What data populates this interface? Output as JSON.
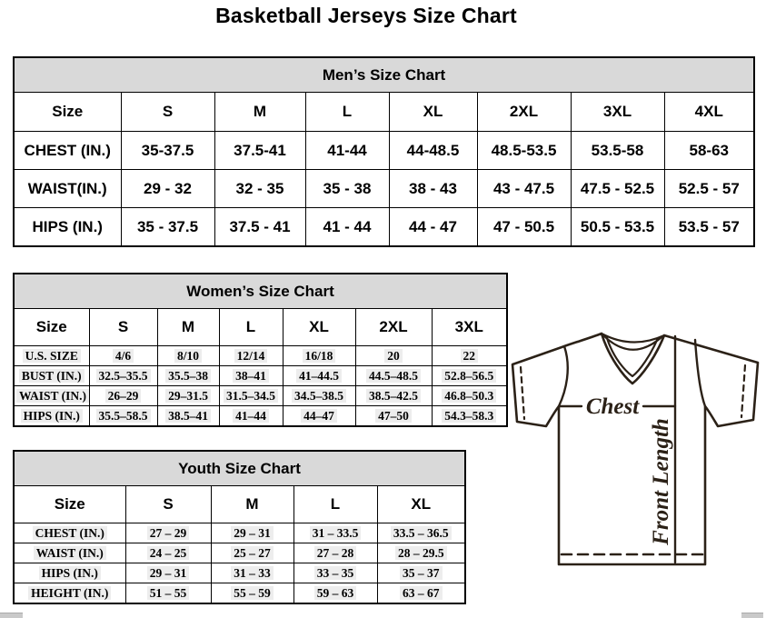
{
  "page_title": "Basketball Jerseys Size Chart",
  "tables": {
    "mens": {
      "title": "Men’s Size Chart",
      "header": [
        "Size",
        "S",
        "M",
        "L",
        "XL",
        "2XL",
        "3XL",
        "4XL"
      ],
      "rows": [
        {
          "label": "CHEST (IN.)",
          "values": [
            "35-37.5",
            "37.5-41",
            "41-44",
            "44-48.5",
            "48.5-53.5",
            "53.5-58",
            "58-63"
          ]
        },
        {
          "label": "WAIST(IN.)",
          "values": [
            "29 - 32",
            "32 - 35",
            "35 - 38",
            "38 - 43",
            "43 - 47.5",
            "47.5 - 52.5",
            "52.5 - 57"
          ]
        },
        {
          "label": "HIPS (IN.)",
          "values": [
            "35 - 37.5",
            "37.5 - 41",
            "41 - 44",
            "44 - 47",
            "47 - 50.5",
            "50.5 - 53.5",
            "53.5 - 57"
          ]
        }
      ]
    },
    "womens": {
      "title": "Women’s Size Chart",
      "header": [
        "Size",
        "S",
        "M",
        "L",
        "XL",
        "2XL",
        "3XL"
      ],
      "rows": [
        {
          "label": "U.S. SIZE",
          "values": [
            "4/6",
            "8/10",
            "12/14",
            "16/18",
            "20",
            "22"
          ]
        },
        {
          "label": "BUST (IN.)",
          "values": [
            "32.5–35.5",
            "35.5–38",
            "38–41",
            "41–44.5",
            "44.5–48.5",
            "52.8–56.5"
          ]
        },
        {
          "label": "WAIST (IN.)",
          "values": [
            "26–29",
            "29–31.5",
            "31.5–34.5",
            "34.5–38.5",
            "38.5–42.5",
            "46.8–50.3"
          ]
        },
        {
          "label": "HIPS (IN.)",
          "values": [
            "35.5–58.5",
            "38.5–41",
            "41–44",
            "44–47",
            "47–50",
            "54.3–58.3"
          ]
        }
      ]
    },
    "youth": {
      "title": "Youth Size Chart",
      "header": [
        "Size",
        "S",
        "M",
        "L",
        "XL"
      ],
      "rows": [
        {
          "label": "CHEST (IN.)",
          "values": [
            "27 – 29",
            "29 – 31",
            "31 – 33.5",
            "33.5 – 36.5"
          ]
        },
        {
          "label": "WAIST (IN.)",
          "values": [
            "24 – 25",
            "25 – 27",
            "27 – 28",
            "28 – 29.5"
          ]
        },
        {
          "label": "HIPS (IN.)",
          "values": [
            "29 – 31",
            "31 – 33",
            "33 – 35",
            "35 – 37"
          ]
        },
        {
          "label": "HEIGHT (IN.)",
          "values": [
            "51 – 55",
            "55 – 59",
            "59 – 63",
            "63 – 67"
          ]
        }
      ]
    }
  },
  "diagram": {
    "chest_label": "Chest",
    "front_length_label": "Front Length"
  },
  "colors": {
    "table_band_gray": "#d9d9d9",
    "jersey_outline": "#2b2117",
    "border_black": "#000000"
  }
}
